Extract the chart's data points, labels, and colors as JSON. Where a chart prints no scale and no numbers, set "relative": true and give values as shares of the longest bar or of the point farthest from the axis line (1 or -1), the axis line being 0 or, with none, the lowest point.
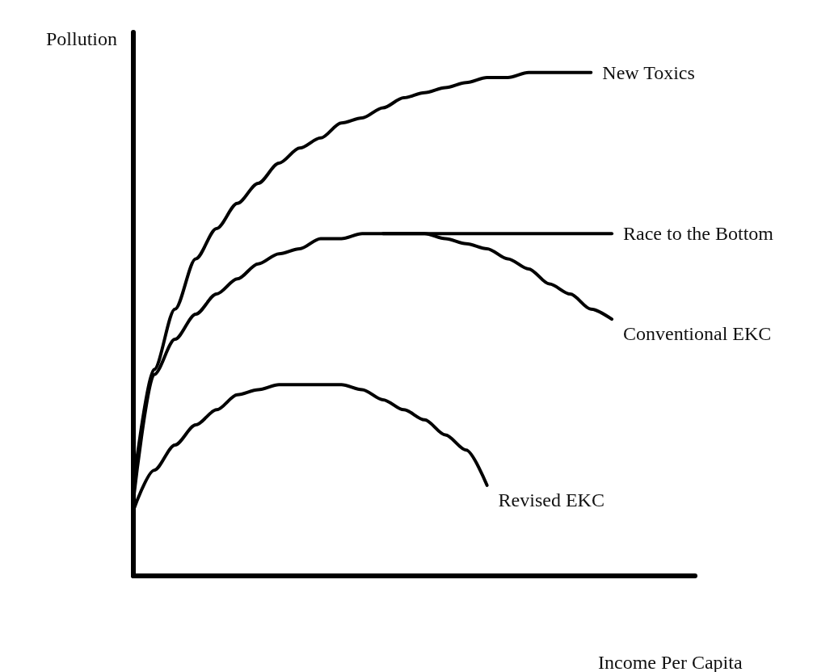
{
  "chart_data": {
    "type": "line",
    "relative": true,
    "xlabel": "Income Per Capita",
    "ylabel": "Pollution",
    "marker": "none",
    "line_style": "solid",
    "categories": [
      null,
      null,
      null,
      null,
      null,
      null,
      null,
      null,
      null,
      null,
      null,
      null,
      null,
      null,
      null,
      null,
      null,
      null,
      null,
      null,
      null,
      null,
      null,
      null,
      null,
      null,
      null,
      null
    ],
    "series": [
      {
        "name": "New Toxics",
        "color": "#000000",
        "values": [
          0.18,
          0.41,
          0.53,
          0.63,
          0.69,
          0.74,
          0.78,
          0.82,
          0.85,
          0.87,
          0.9,
          0.91,
          0.93,
          0.95,
          0.96,
          0.97,
          0.98,
          0.99,
          0.99,
          1,
          1,
          1,
          1,
          null,
          null,
          null,
          null,
          null
        ]
      },
      {
        "name": "Race to the Bottom",
        "color": "#000000",
        "values": [
          null,
          null,
          null,
          null,
          null,
          null,
          null,
          null,
          null,
          null,
          null,
          null,
          0.68,
          0.68,
          0.68,
          0.68,
          0.68,
          0.68,
          0.68,
          0.68,
          0.68,
          0.68,
          0.68,
          0.68,
          null,
          null,
          null,
          null
        ]
      },
      {
        "name": "Conventional EKC",
        "color": "#000000",
        "values": [
          0.15,
          0.4,
          0.47,
          0.52,
          0.56,
          0.59,
          0.62,
          0.64,
          0.65,
          0.67,
          0.67,
          0.68,
          0.68,
          0.68,
          0.68,
          0.67,
          0.66,
          0.65,
          0.63,
          0.61,
          0.58,
          0.56,
          0.53,
          0.51,
          null,
          null,
          null,
          null
        ]
      },
      {
        "name": "Revised EKC",
        "color": "#000000",
        "values": [
          0.13,
          0.21,
          0.26,
          0.3,
          0.33,
          0.36,
          0.37,
          0.38,
          0.38,
          0.38,
          0.38,
          0.37,
          0.35,
          0.33,
          0.31,
          0.28,
          0.25,
          0.18,
          null,
          null,
          null,
          null,
          null,
          null,
          null,
          null,
          null,
          null
        ]
      }
    ]
  }
}
